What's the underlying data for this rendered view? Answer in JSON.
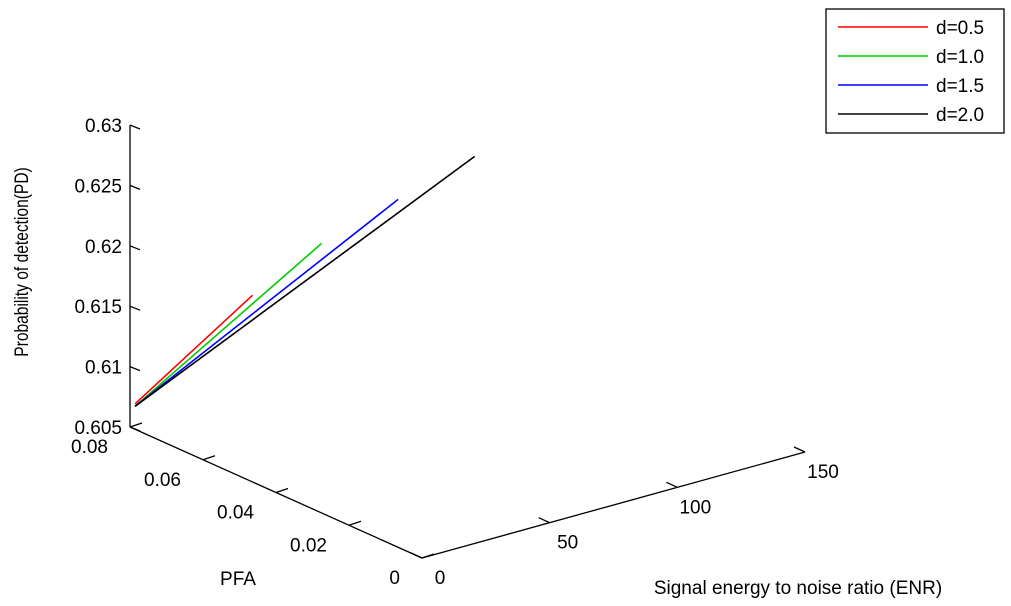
{
  "chart_data": {
    "type": "line",
    "projection": "3d",
    "title": "",
    "xlabel": "Signal energy to noise ratio (ENR)",
    "ylabel": "PFA",
    "zlabel": "Probability of detection(PD)",
    "xlim": [
      0,
      150
    ],
    "ylim": [
      0,
      0.08
    ],
    "zlim": [
      0.605,
      0.63
    ],
    "xticks": [
      "0",
      "50",
      "100",
      "150"
    ],
    "yticks": [
      "0",
      "0.02",
      "0.04",
      "0.06",
      "0.08"
    ],
    "zticks": [
      "0.605",
      "0.61",
      "0.615",
      "0.62",
      "0.625",
      "0.63"
    ],
    "grid": false,
    "legend_position": "top-right",
    "series": [
      {
        "name": "d=0.5",
        "color": "#ff0000",
        "x": [
          2,
          48
        ],
        "y": [
          0.08,
          0.08
        ],
        "z": [
          0.6068,
          0.6131
        ]
      },
      {
        "name": "d=1.0",
        "color": "#00cc00",
        "x": [
          2,
          75
        ],
        "y": [
          0.08,
          0.08
        ],
        "z": [
          0.6066,
          0.6158
        ]
      },
      {
        "name": "d=1.5",
        "color": "#0000ff",
        "x": [
          2,
          105
        ],
        "y": [
          0.08,
          0.08
        ],
        "z": [
          0.6066,
          0.6177
        ]
      },
      {
        "name": "d=2.0",
        "color": "#000000",
        "x": [
          2,
          135
        ],
        "y": [
          0.08,
          0.08
        ],
        "z": [
          0.6066,
          0.6195
        ]
      }
    ]
  }
}
